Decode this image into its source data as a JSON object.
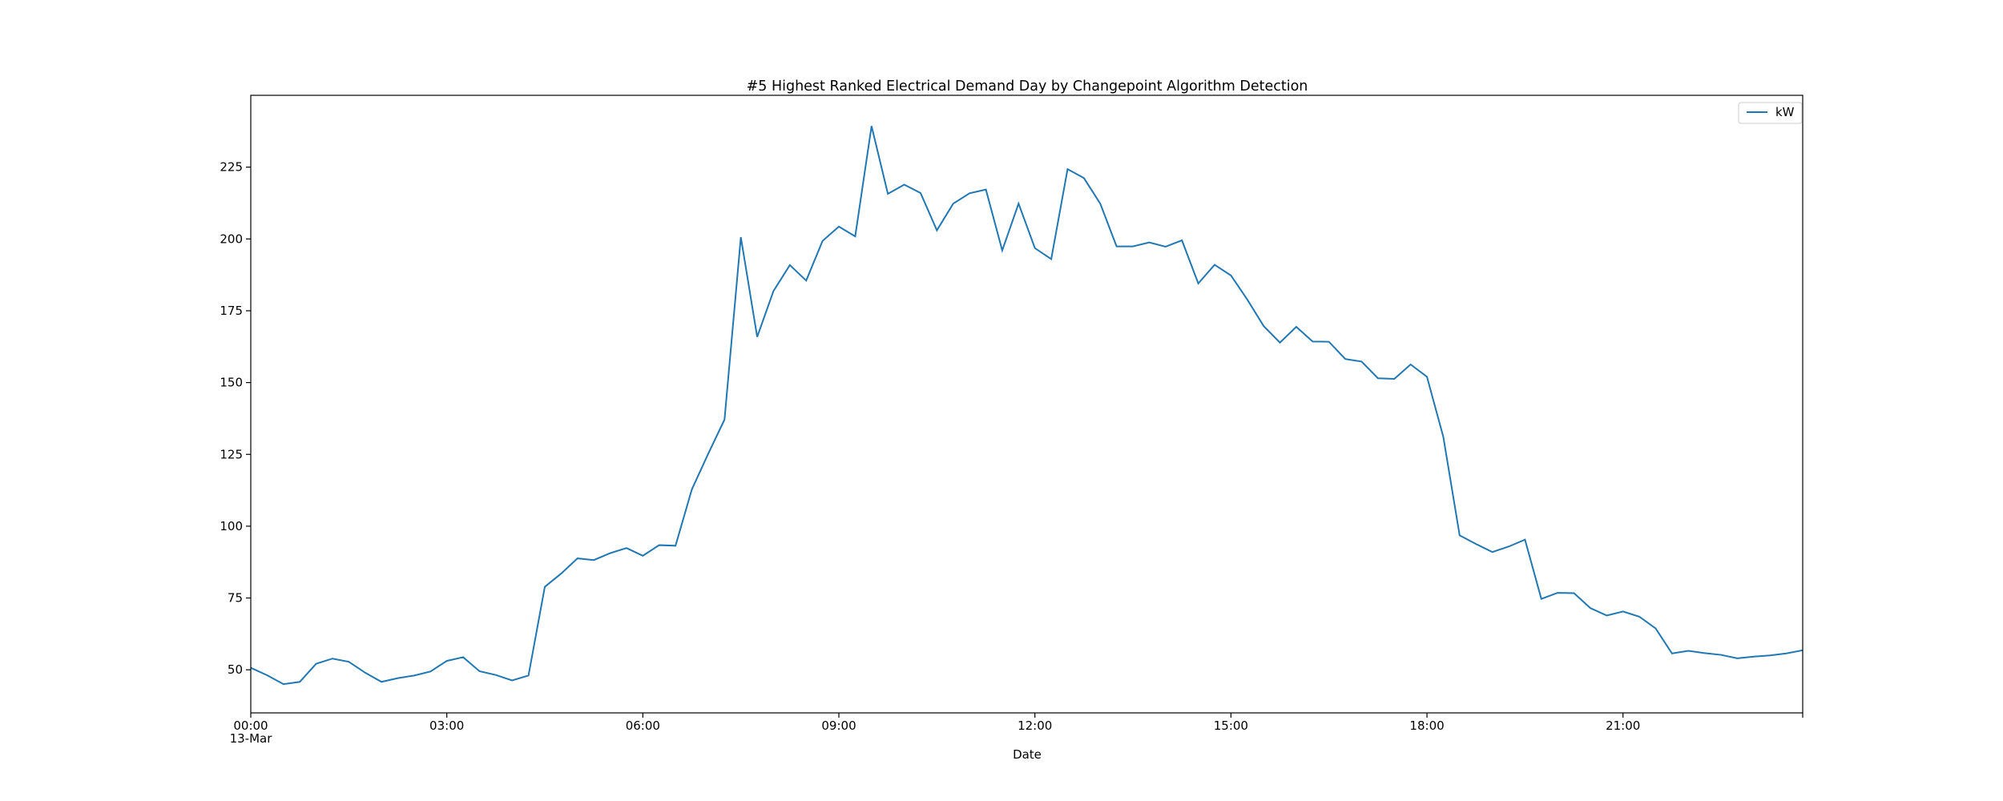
{
  "chart_data": {
    "type": "line",
    "title": "#5 Highest Ranked Electrical Demand Day by Changepoint Algorithm Detection",
    "xlabel": "Date",
    "ylabel": "",
    "date_label": "13-Mar",
    "x_tick_labels": [
      "00:00",
      "03:00",
      "06:00",
      "09:00",
      "12:00",
      "15:00",
      "18:00",
      "21:00"
    ],
    "x_tick_hours": [
      0,
      3,
      6,
      9,
      12,
      15,
      18,
      21
    ],
    "xlim_hours": [
      0,
      23.75
    ],
    "y_ticks": [
      50,
      75,
      100,
      125,
      150,
      175,
      200,
      225
    ],
    "ylim": [
      35,
      250
    ],
    "grid": false,
    "legend": {
      "position": "top-right",
      "entries": [
        "kW"
      ]
    },
    "series": [
      {
        "name": "kW",
        "color": "#1f77b4",
        "interval_minutes": 15,
        "values": [
          50.7,
          48.1,
          45.0,
          45.8,
          52.1,
          53.9,
          52.8,
          49.0,
          45.8,
          47.1,
          48.0,
          49.4,
          53.1,
          54.4,
          49.5,
          48.2,
          46.3,
          48.0,
          78.9,
          83.5,
          88.8,
          88.2,
          90.6,
          92.4,
          89.7,
          93.4,
          93.2,
          112.8,
          125.2,
          137.1,
          200.6,
          165.9,
          181.9,
          190.9,
          185.5,
          199.3,
          204.3,
          200.9,
          239.3,
          215.7,
          218.9,
          216.0,
          203.0,
          212.3,
          215.9,
          217.2,
          196.0,
          212.3,
          196.8,
          193.0,
          224.3,
          221.2,
          212.3,
          197.4,
          197.4,
          198.8,
          197.3,
          199.5,
          184.5,
          191.0,
          187.3,
          178.9,
          169.7,
          163.9,
          169.4,
          164.3,
          164.2,
          158.2,
          157.3,
          151.5,
          151.3,
          156.3,
          152.0,
          131.1,
          96.8,
          93.8,
          91.0,
          92.9,
          95.3,
          74.7,
          76.8,
          76.7,
          71.5,
          68.9,
          70.3,
          68.5,
          64.4,
          55.7,
          56.6,
          55.8,
          55.2,
          54.0,
          54.6,
          55.0,
          55.7,
          56.8
        ]
      }
    ]
  }
}
